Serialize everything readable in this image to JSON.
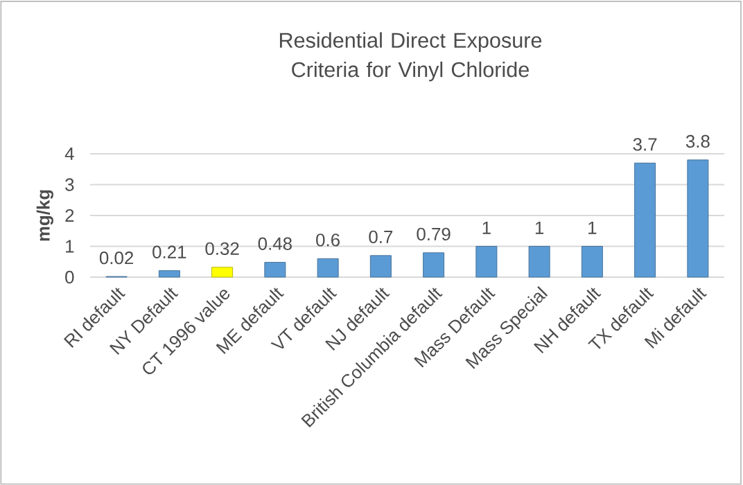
{
  "chart_data": {
    "type": "bar",
    "title": "Residential Direct Exposure Criteria for Vinyl Chloride",
    "ylabel": "mg/kg",
    "categories": [
      "RI default",
      "NY Default",
      "CT 1996 value",
      "ME default",
      "VT default",
      "NJ default",
      "British Columbia default",
      "Mass Default",
      "Mass Special",
      "NH default",
      "TX default",
      "Mi default"
    ],
    "values": [
      0.02,
      0.21,
      0.32,
      0.48,
      0.6,
      0.7,
      0.79,
      1,
      1,
      1,
      3.7,
      3.8
    ],
    "colors": [
      "#5b9bd5",
      "#5b9bd5",
      "#ffff00",
      "#5b9bd5",
      "#5b9bd5",
      "#5b9bd5",
      "#5b9bd5",
      "#5b9bd5",
      "#5b9bd5",
      "#5b9bd5",
      "#5b9bd5",
      "#5b9bd5"
    ],
    "ylim": [
      0,
      4
    ],
    "yticks": [
      0,
      1,
      2,
      3,
      4
    ],
    "grid": "y",
    "data_labels": true
  }
}
